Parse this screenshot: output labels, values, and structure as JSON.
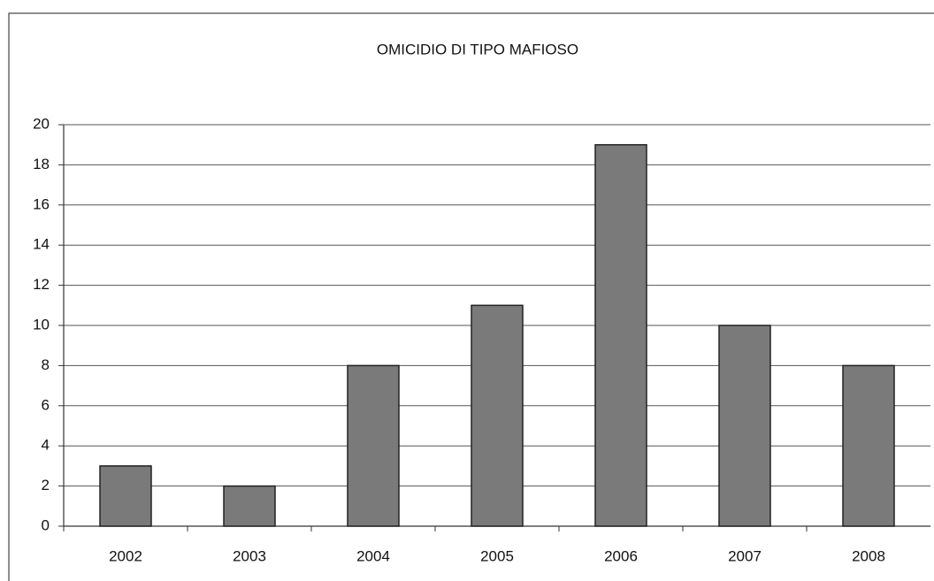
{
  "chart_data": {
    "type": "bar",
    "title": "OMICIDIO DI TIPO MAFIOSO",
    "categories": [
      "2002",
      "2003",
      "2004",
      "2005",
      "2006",
      "2007",
      "2008"
    ],
    "values": [
      3,
      2,
      8,
      11,
      19,
      10,
      8
    ],
    "color": "#7a7a7a",
    "ylim": [
      0,
      20
    ],
    "yticks": [
      0,
      2,
      4,
      6,
      8,
      10,
      12,
      14,
      16,
      18,
      20
    ],
    "grid": true
  }
}
